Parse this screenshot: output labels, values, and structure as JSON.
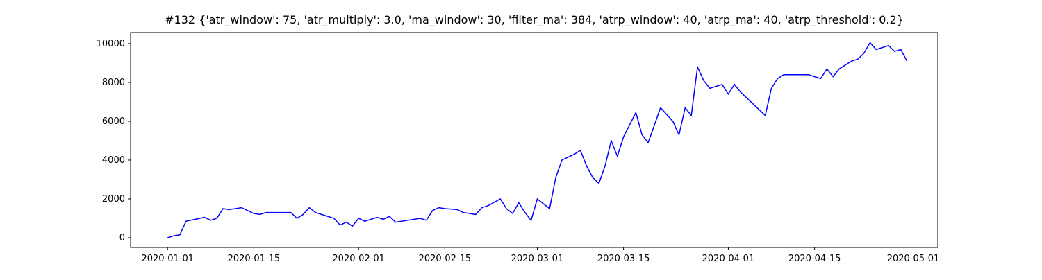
{
  "chart_data": {
    "type": "line",
    "title": "#132 {'atr_window': 75, 'atr_multiply': 3.0, 'ma_window': 30, 'filter_ma': 384, 'atrp_window': 40, 'atrp_ma': 40, 'atrp_threshold': 0.2}",
    "x": [
      "2020-01-01",
      "2020-01-02",
      "2020-01-03",
      "2020-01-04",
      "2020-01-07",
      "2020-01-08",
      "2020-01-09",
      "2020-01-10",
      "2020-01-11",
      "2020-01-13",
      "2020-01-15",
      "2020-01-16",
      "2020-01-17",
      "2020-01-21",
      "2020-01-22",
      "2020-01-23",
      "2020-01-24",
      "2020-01-25",
      "2020-01-28",
      "2020-01-29",
      "2020-01-30",
      "2020-01-31",
      "2020-02-01",
      "2020-02-02",
      "2020-02-04",
      "2020-02-05",
      "2020-02-06",
      "2020-02-07",
      "2020-02-11",
      "2020-02-12",
      "2020-02-13",
      "2020-02-14",
      "2020-02-15",
      "2020-02-17",
      "2020-02-18",
      "2020-02-19",
      "2020-02-20",
      "2020-02-21",
      "2020-02-22",
      "2020-02-24",
      "2020-02-25",
      "2020-02-26",
      "2020-02-27",
      "2020-02-28",
      "2020-02-29",
      "2020-03-01",
      "2020-03-03",
      "2020-03-04",
      "2020-03-05",
      "2020-03-07",
      "2020-03-08",
      "2020-03-09",
      "2020-03-10",
      "2020-03-11",
      "2020-03-12",
      "2020-03-13",
      "2020-03-14",
      "2020-03-15",
      "2020-03-17",
      "2020-03-18",
      "2020-03-19",
      "2020-03-20",
      "2020-03-21",
      "2020-03-23",
      "2020-03-24",
      "2020-03-25",
      "2020-03-26",
      "2020-03-27",
      "2020-03-28",
      "2020-03-29",
      "2020-03-31",
      "2020-04-01",
      "2020-04-02",
      "2020-04-03",
      "2020-04-06",
      "2020-04-07",
      "2020-04-08",
      "2020-04-09",
      "2020-04-10",
      "2020-04-14",
      "2020-04-16",
      "2020-04-17",
      "2020-04-18",
      "2020-04-19",
      "2020-04-21",
      "2020-04-22",
      "2020-04-23",
      "2020-04-24",
      "2020-04-25",
      "2020-04-27",
      "2020-04-28",
      "2020-04-29",
      "2020-04-30"
    ],
    "series": [
      {
        "color": "#0000ff",
        "values": [
          0,
          100,
          150,
          850,
          1050,
          900,
          1000,
          1500,
          1450,
          1550,
          1250,
          1200,
          1300,
          1300,
          1000,
          1200,
          1550,
          1300,
          1000,
          650,
          800,
          600,
          1000,
          850,
          1050,
          950,
          1100,
          800,
          1000,
          900,
          1400,
          1550,
          1500,
          1450,
          1300,
          1250,
          1200,
          1550,
          1650,
          2000,
          1500,
          1250,
          1800,
          1300,
          900,
          2000,
          1500,
          3100,
          4000,
          4300,
          4500,
          3700,
          3100,
          2800,
          3700,
          5000,
          4200,
          5200,
          6450,
          5300,
          4900,
          5800,
          6700,
          6000,
          5300,
          6700,
          6300,
          8800,
          8100,
          7700,
          7900,
          7400,
          7900,
          7500,
          6600,
          6300,
          7700,
          8200,
          8400,
          8400,
          8200,
          8700,
          8300,
          8700,
          9100,
          9200,
          9500,
          10050,
          9700,
          9900,
          9600,
          9700,
          9100
        ]
      }
    ],
    "xlim": [
      "2019-12-26",
      "2020-05-05"
    ],
    "xticks": [
      "2020-01-01",
      "2020-01-15",
      "2020-02-01",
      "2020-02-15",
      "2020-03-01",
      "2020-03-15",
      "2020-04-01",
      "2020-04-15",
      "2020-05-01"
    ],
    "ylim": [
      -500,
      10570
    ],
    "yticks": [
      0,
      2000,
      4000,
      6000,
      8000,
      10000
    ]
  }
}
